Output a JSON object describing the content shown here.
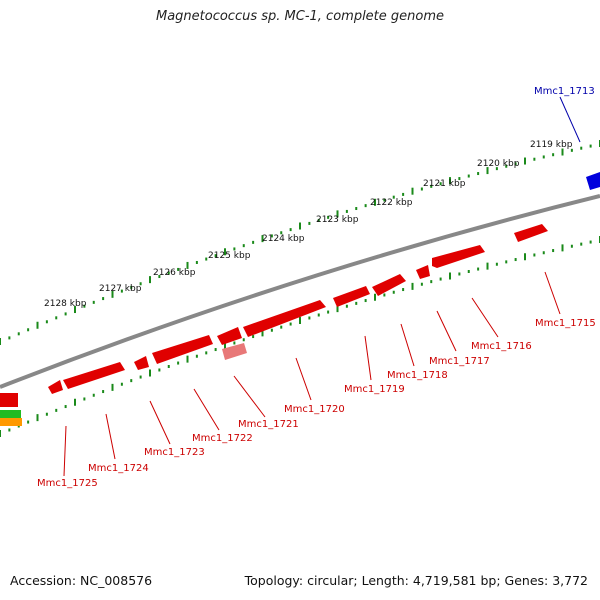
{
  "title": "Magnetococcus sp. MC-1, complete genome",
  "footer": {
    "accession": "Accession: NC_008576",
    "stats": "Topology: circular; Length: 4,719,581 bp; Genes: 3,772"
  },
  "colors": {
    "forward_gene": "#e00000",
    "reverse_gene": "#e00000",
    "rna_gene": "#e87878",
    "blue_gene": "#0000dd",
    "blue_label": "#0000aa",
    "red_label": "#cc0000",
    "backbone": "#888888",
    "tick": "#1a8a1a",
    "green_track": "#22bb22",
    "orange_track": "#ff9900"
  },
  "scale_labels": [
    "2119 kbp",
    "2120 kbp",
    "2121 kbp",
    "2122 kbp",
    "2123 kbp",
    "2124 kbp",
    "2125 kbp",
    "2126 kbp",
    "2127 kbp",
    "2128 kbp"
  ],
  "genes": [
    {
      "name": "Mmc1_1713",
      "color": "blue_label"
    },
    {
      "name": "Mmc1_1715",
      "color": "red_label"
    },
    {
      "name": "Mmc1_1716",
      "color": "red_label"
    },
    {
      "name": "Mmc1_1717",
      "color": "red_label"
    },
    {
      "name": "Mmc1_1718",
      "color": "red_label"
    },
    {
      "name": "Mmc1_1719",
      "color": "red_label"
    },
    {
      "name": "Mmc1_1720",
      "color": "red_label"
    },
    {
      "name": "Mmc1_1721",
      "color": "red_label"
    },
    {
      "name": "Mmc1_1722",
      "color": "red_label"
    },
    {
      "name": "Mmc1_1723",
      "color": "red_label"
    },
    {
      "name": "Mmc1_1724",
      "color": "red_label"
    },
    {
      "name": "Mmc1_1725",
      "color": "red_label"
    }
  ]
}
